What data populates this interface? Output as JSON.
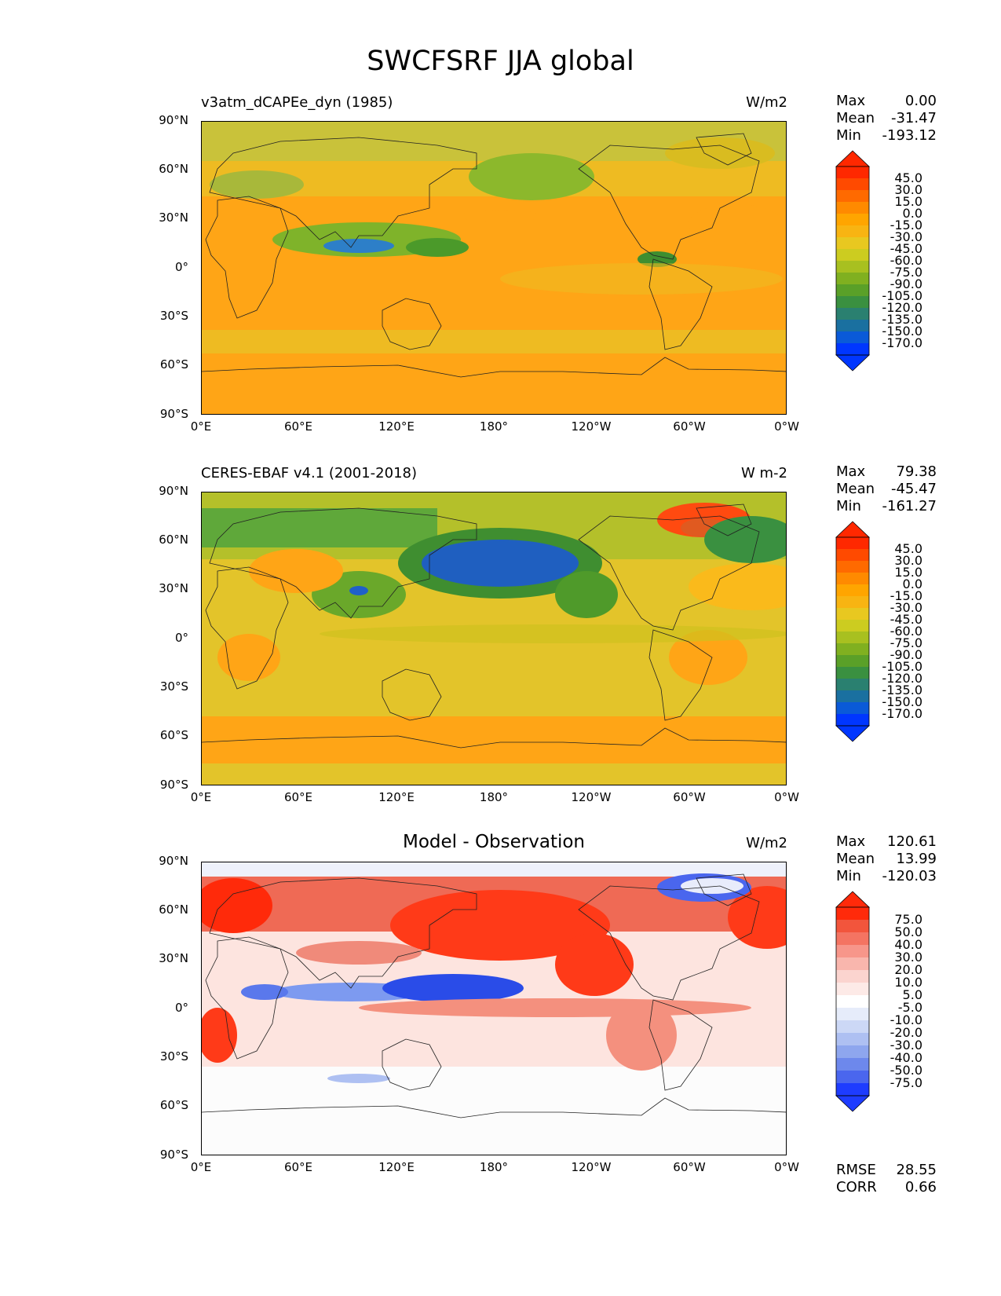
{
  "title": "SWCFSRF JJA global",
  "lat_ticks": [
    "90°N",
    "60°N",
    "30°N",
    "0°",
    "30°S",
    "60°S",
    "90°S"
  ],
  "lon_ticks": [
    "0°E",
    "60°E",
    "120°E",
    "180°",
    "120°W",
    "60°W",
    "0°W"
  ],
  "panels": [
    {
      "title_left": "v3atm_dCAPEe_dyn (1985)",
      "title_center": "",
      "units": "W/m2",
      "stats": {
        "max_label": "Max",
        "max": "0.00",
        "mean_label": "Mean",
        "mean": "-31.47",
        "min_label": "Min",
        "min": "-193.12"
      },
      "colorbar": {
        "labels": [
          "45.0",
          "30.0",
          "15.0",
          "0.0",
          "-15.0",
          "-30.0",
          "-45.0",
          "-60.0",
          "-75.0",
          "-90.0",
          "-105.0",
          "-120.0",
          "-135.0",
          "-150.0",
          "-170.0"
        ],
        "colors": [
          "#ff2800",
          "#ff4a00",
          "#ff6a00",
          "#ff8a00",
          "#ffa500",
          "#f8b412",
          "#e8c820",
          "#cccc20",
          "#a8c020",
          "#80b020",
          "#5aa028",
          "#3a9040",
          "#2a8070",
          "#1a70a0",
          "#0a5ad8",
          "#0036ff"
        ],
        "extend_top": "#ff2800",
        "extend_bottom": "#0036ff"
      }
    },
    {
      "title_left": "CERES-EBAF v4.1 (2001-2018)",
      "title_center": "",
      "units": "W m-2",
      "stats": {
        "max_label": "Max",
        "max": "79.38",
        "mean_label": "Mean",
        "mean": "-45.47",
        "min_label": "Min",
        "min": "-161.27"
      },
      "colorbar": {
        "labels": [
          "45.0",
          "30.0",
          "15.0",
          "0.0",
          "-15.0",
          "-30.0",
          "-45.0",
          "-60.0",
          "-75.0",
          "-90.0",
          "-105.0",
          "-120.0",
          "-135.0",
          "-150.0",
          "-170.0"
        ],
        "colors": [
          "#ff2800",
          "#ff4a00",
          "#ff6a00",
          "#ff8a00",
          "#ffa500",
          "#f8b412",
          "#e8c820",
          "#cccc20",
          "#a8c020",
          "#80b020",
          "#5aa028",
          "#3a9040",
          "#2a8070",
          "#1a70a0",
          "#0a5ad8",
          "#0036ff"
        ],
        "extend_top": "#ff2800",
        "extend_bottom": "#0036ff"
      }
    },
    {
      "title_left": "",
      "title_center": "Model - Observation",
      "units": "W/m2",
      "stats": {
        "max_label": "Max",
        "max": "120.61",
        "mean_label": "Mean",
        "mean": "13.99",
        "min_label": "Min",
        "min": "-120.03"
      },
      "colorbar": {
        "labels": [
          "75.0",
          "50.0",
          "40.0",
          "30.0",
          "20.0",
          "10.0",
          "5.0",
          "-5.0",
          "-10.0",
          "-20.0",
          "-30.0",
          "-40.0",
          "-50.0",
          "-75.0"
        ],
        "colors": [
          "#ff2a0a",
          "#f2553c",
          "#f47462",
          "#f7968a",
          "#f9b6ad",
          "#fbd4cf",
          "#fdeae7",
          "#ffffff",
          "#e6ecfa",
          "#ccd8f6",
          "#aec0f2",
          "#8ea6ee",
          "#6d88ec",
          "#4a66ee",
          "#1e3cff"
        ],
        "extend_top": "#ff2a0a",
        "extend_bottom": "#1e3cff"
      },
      "metrics": {
        "rmse_label": "RMSE",
        "rmse": "28.55",
        "corr_label": "CORR",
        "corr": "0.66"
      }
    }
  ]
}
